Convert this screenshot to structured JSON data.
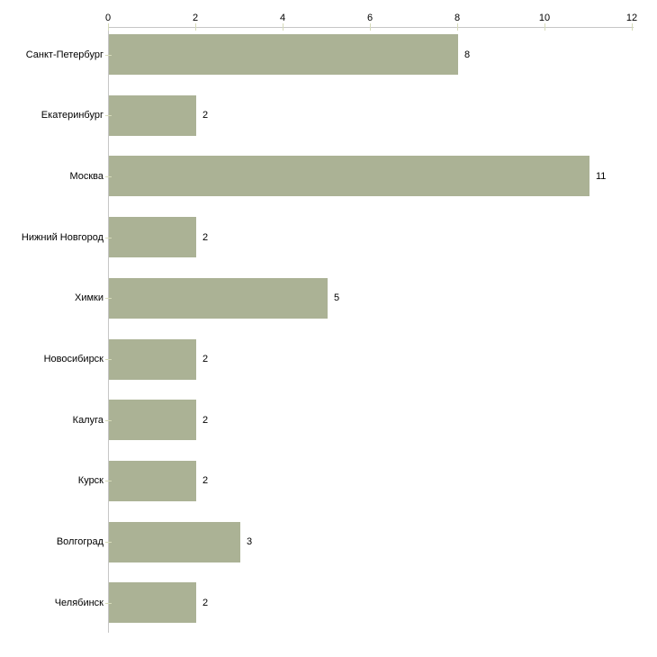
{
  "chart_data": {
    "type": "bar",
    "orientation": "horizontal",
    "title": "",
    "xlabel": "",
    "ylabel": "",
    "categories": [
      "Санкт-Петербург",
      "Екатеринбург",
      "Москва",
      "Нижний Новгород",
      "Химки",
      "Новосибирск",
      "Калуга",
      "Курск",
      "Волгоград",
      "Челябинск"
    ],
    "values": [
      8,
      2,
      11,
      2,
      5,
      2,
      2,
      2,
      3,
      2
    ],
    "value_labels": [
      "8",
      "2",
      "11",
      "2",
      "5",
      "2",
      "2",
      "2",
      "3",
      "2"
    ],
    "xlim": [
      0,
      12
    ],
    "x_ticks": [
      0,
      2,
      4,
      6,
      8,
      10,
      12
    ],
    "x_tick_labels": [
      "0",
      "2",
      "4",
      "6",
      "8",
      "10",
      "12"
    ],
    "x_axis_position": "top",
    "grid": false,
    "legend": false,
    "colors": {
      "bar": "#abb295",
      "axis_line": "#c6c6c6",
      "tick_mark": "#d6dbba",
      "text": "#000000",
      "background": "#ffffff"
    }
  }
}
